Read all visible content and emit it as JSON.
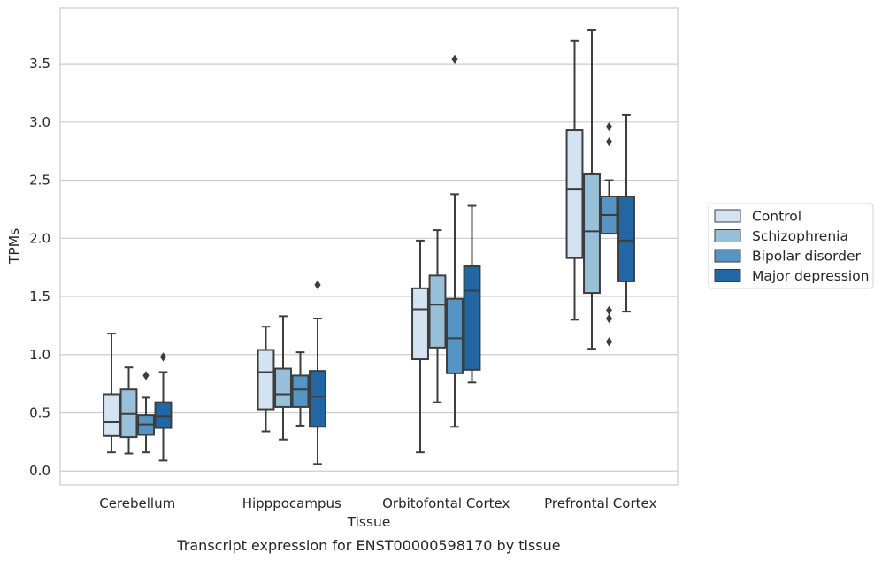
{
  "chart_data": {
    "type": "boxplot",
    "title": "",
    "caption": "Transcript expression for ENST00000598170 by tissue",
    "xlabel": "Tissue",
    "ylabel": "TPMs",
    "ylim": [
      -0.12,
      3.98
    ],
    "yticks": [
      "0.0",
      "0.5",
      "1.0",
      "1.5",
      "2.0",
      "2.5",
      "3.0",
      "3.5"
    ],
    "grid": "horizontal",
    "legend_position": "right",
    "categories": [
      "Cerebellum",
      "Hipppocampus",
      "Orbitofontal Cortex",
      "Prefrontal Cortex"
    ],
    "series": [
      {
        "name": "Control",
        "color": "#d4e3f1",
        "boxes": [
          {
            "whislo": 0.16,
            "q1": 0.3,
            "med": 0.42,
            "q3": 0.66,
            "whishi": 1.18,
            "fliers": []
          },
          {
            "whislo": 0.34,
            "q1": 0.53,
            "med": 0.85,
            "q3": 1.04,
            "whishi": 1.24,
            "fliers": []
          },
          {
            "whislo": 0.16,
            "q1": 0.96,
            "med": 1.39,
            "q3": 1.57,
            "whishi": 1.98,
            "fliers": []
          },
          {
            "whislo": 1.3,
            "q1": 1.83,
            "med": 2.42,
            "q3": 2.93,
            "whishi": 3.7,
            "fliers": []
          }
        ]
      },
      {
        "name": "Schizophrenia",
        "color": "#98c0d9",
        "boxes": [
          {
            "whislo": 0.15,
            "q1": 0.29,
            "med": 0.49,
            "q3": 0.7,
            "whishi": 0.89,
            "fliers": []
          },
          {
            "whislo": 0.27,
            "q1": 0.55,
            "med": 0.66,
            "q3": 0.88,
            "whishi": 1.33,
            "fliers": []
          },
          {
            "whislo": 0.59,
            "q1": 1.06,
            "med": 1.43,
            "q3": 1.68,
            "whishi": 2.07,
            "fliers": []
          },
          {
            "whislo": 1.05,
            "q1": 1.53,
            "med": 2.06,
            "q3": 2.55,
            "whishi": 3.79,
            "fliers": []
          }
        ]
      },
      {
        "name": "Bipolar disorder",
        "color": "#5694c3",
        "boxes": [
          {
            "whislo": 0.16,
            "q1": 0.31,
            "med": 0.4,
            "q3": 0.48,
            "whishi": 0.63,
            "fliers": [
              0.82
            ]
          },
          {
            "whislo": 0.39,
            "q1": 0.55,
            "med": 0.7,
            "q3": 0.82,
            "whishi": 1.02,
            "fliers": []
          },
          {
            "whislo": 0.38,
            "q1": 0.84,
            "med": 1.14,
            "q3": 1.48,
            "whishi": 2.38,
            "fliers": [
              3.54
            ]
          },
          {
            "whislo": 2.04,
            "q1": 2.04,
            "med": 2.2,
            "q3": 2.36,
            "whishi": 2.5,
            "fliers": [
              2.96,
              2.83,
              1.38,
              1.31,
              1.11
            ]
          }
        ]
      },
      {
        "name": "Major depression",
        "color": "#2366a6",
        "boxes": [
          {
            "whislo": 0.09,
            "q1": 0.37,
            "med": 0.47,
            "q3": 0.59,
            "whishi": 0.85,
            "fliers": [
              0.98
            ]
          },
          {
            "whislo": 0.06,
            "q1": 0.38,
            "med": 0.64,
            "q3": 0.86,
            "whishi": 1.31,
            "fliers": [
              1.6
            ]
          },
          {
            "whislo": 0.76,
            "q1": 0.87,
            "med": 1.55,
            "q3": 1.76,
            "whishi": 2.28,
            "fliers": []
          },
          {
            "whislo": 1.37,
            "q1": 1.63,
            "med": 1.98,
            "q3": 2.36,
            "whishi": 3.06,
            "fliers": []
          }
        ]
      }
    ]
  }
}
